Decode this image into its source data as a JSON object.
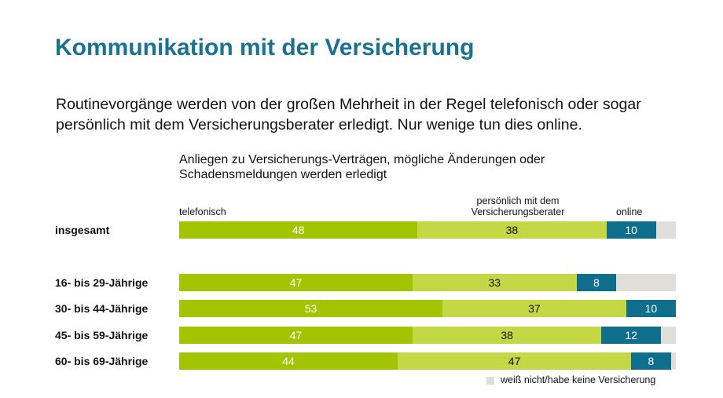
{
  "header": {
    "title": "Kommunikation mit der Versicherung",
    "intro": "Routinevorgänge werden von der großen Mehrheit in der Regel telefonisch oder sogar persönlich mit dem Versicherungsberater erledigt. Nur wenige tun dies online."
  },
  "chart_data": {
    "type": "bar",
    "orientation": "horizontal-stacked",
    "title": "Anliegen zu Versicherungs-Verträgen, mögliche Änderungen oder Schadensmeldungen  werden erledigt",
    "categories": [
      "insgesamt",
      "16- bis 29-Jährige",
      "30- bis 44-Jährige",
      "45- bis 59-Jährige",
      "60- bis 69-Jährige"
    ],
    "series": [
      {
        "name": "telefonisch",
        "values": [
          48,
          47,
          53,
          47,
          44
        ],
        "color": "#a3c400",
        "label_color": "#ffffff"
      },
      {
        "name": "persönlich mit dem Versicherungsberater",
        "values": [
          38,
          33,
          37,
          38,
          47
        ],
        "color": "#c3d844",
        "label_color": "#111111"
      },
      {
        "name": "online",
        "values": [
          10,
          8,
          10,
          12,
          8
        ],
        "color": "#0f6e8c",
        "label_color": "#ffffff"
      },
      {
        "name": "weiß nicht/habe keine Versicherung",
        "values": [
          4,
          12,
          0,
          3,
          1
        ],
        "color": "#e0ded9",
        "label_color": "#111111",
        "show_labels": false
      }
    ],
    "column_headers": [
      "telefonisch",
      "persönlich mit dem",
      "Versicherungsberater",
      "online"
    ],
    "legend": "weiß nicht/habe keine Versicherung",
    "xlim": [
      0,
      100
    ]
  }
}
